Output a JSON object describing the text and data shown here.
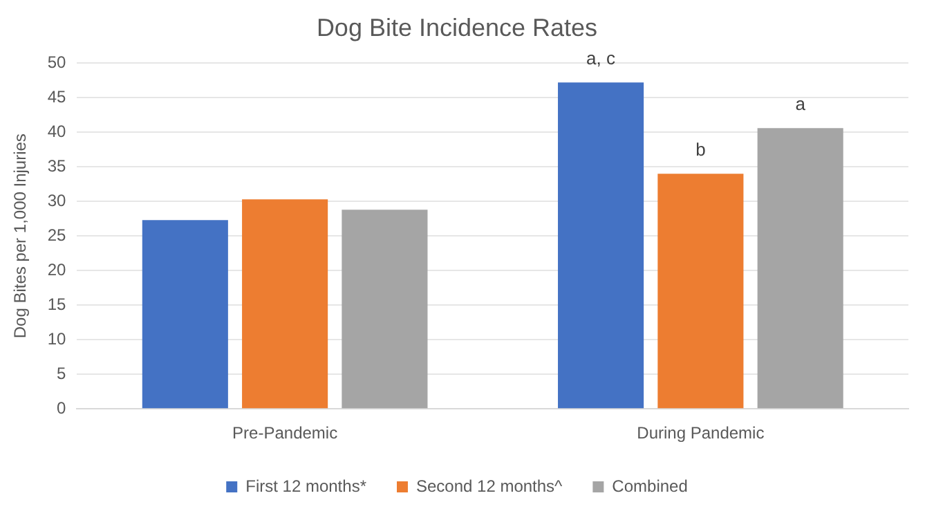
{
  "chart_data": {
    "type": "bar",
    "title": "Dog Bite Incidence Rates",
    "ylabel": "Dog Bites per 1,000 Injuries",
    "categories": [
      "Pre-Pandemic",
      "During Pandemic"
    ],
    "series": [
      {
        "name": "First 12 months*",
        "color": "#4472c4",
        "values": [
          27.3,
          47.2
        ],
        "value_labels": [
          null,
          "a, c"
        ]
      },
      {
        "name": "Second 12 months^",
        "color": "#ed7d31",
        "values": [
          30.3,
          34.0
        ],
        "value_labels": [
          null,
          "b"
        ]
      },
      {
        "name": "Combined",
        "color": "#a5a5a5",
        "values": [
          28.8,
          40.6
        ],
        "value_labels": [
          null,
          "a"
        ]
      }
    ],
    "ylim": [
      0,
      50
    ],
    "yticks": [
      0,
      5,
      10,
      15,
      20,
      25,
      30,
      35,
      40,
      45,
      50
    ],
    "grid": "y",
    "legend": "bottom"
  }
}
